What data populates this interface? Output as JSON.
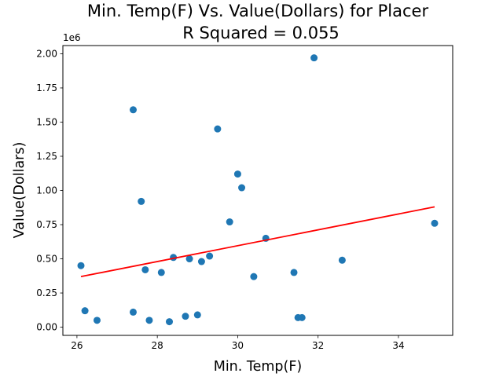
{
  "chart_data": {
    "type": "scatter",
    "title": "Min. Temp(F) Vs. Value(Dollars) for Placer",
    "subtitle": "R Squared =  0.055",
    "xlabel": "Min. Temp(F)",
    "ylabel": "Value(Dollars)",
    "y_offset_label": "1e6",
    "xlim": [
      25.65,
      35.35
    ],
    "ylim": [
      -0.06,
      2.06
    ],
    "x_ticks": [
      26,
      28,
      30,
      32,
      34
    ],
    "x_tick_labels": [
      "26",
      "28",
      "30",
      "32",
      "34"
    ],
    "y_ticks": [
      0.0,
      0.25,
      0.5,
      0.75,
      1.0,
      1.25,
      1.5,
      1.75,
      2.0
    ],
    "y_tick_labels": [
      "0.00",
      "0.25",
      "0.50",
      "0.75",
      "1.00",
      "1.25",
      "1.50",
      "1.75",
      "2.00"
    ],
    "grid": false,
    "colors": {
      "points": "#1f77b4",
      "fit_line": "#ff0000"
    },
    "points": [
      {
        "x": 26.1,
        "y": 0.45
      },
      {
        "x": 26.2,
        "y": 0.12
      },
      {
        "x": 26.5,
        "y": 0.05
      },
      {
        "x": 27.4,
        "y": 1.59
      },
      {
        "x": 27.4,
        "y": 0.11
      },
      {
        "x": 27.6,
        "y": 0.92
      },
      {
        "x": 27.7,
        "y": 0.42
      },
      {
        "x": 27.8,
        "y": 0.05
      },
      {
        "x": 28.1,
        "y": 0.4
      },
      {
        "x": 28.3,
        "y": 0.04
      },
      {
        "x": 28.4,
        "y": 0.51
      },
      {
        "x": 28.7,
        "y": 0.08
      },
      {
        "x": 28.8,
        "y": 0.5
      },
      {
        "x": 29.0,
        "y": 0.09
      },
      {
        "x": 29.1,
        "y": 0.48
      },
      {
        "x": 29.3,
        "y": 0.52
      },
      {
        "x": 29.5,
        "y": 1.45
      },
      {
        "x": 29.8,
        "y": 0.77
      },
      {
        "x": 30.0,
        "y": 1.12
      },
      {
        "x": 30.1,
        "y": 1.02
      },
      {
        "x": 30.4,
        "y": 0.37
      },
      {
        "x": 30.7,
        "y": 0.65
      },
      {
        "x": 31.4,
        "y": 0.4
      },
      {
        "x": 31.5,
        "y": 0.07
      },
      {
        "x": 31.6,
        "y": 0.07
      },
      {
        "x": 31.9,
        "y": 1.97
      },
      {
        "x": 32.6,
        "y": 0.49
      },
      {
        "x": 34.9,
        "y": 0.76
      }
    ],
    "fit_line": {
      "x": [
        26.1,
        34.9
      ],
      "y": [
        0.37,
        0.88
      ]
    }
  }
}
